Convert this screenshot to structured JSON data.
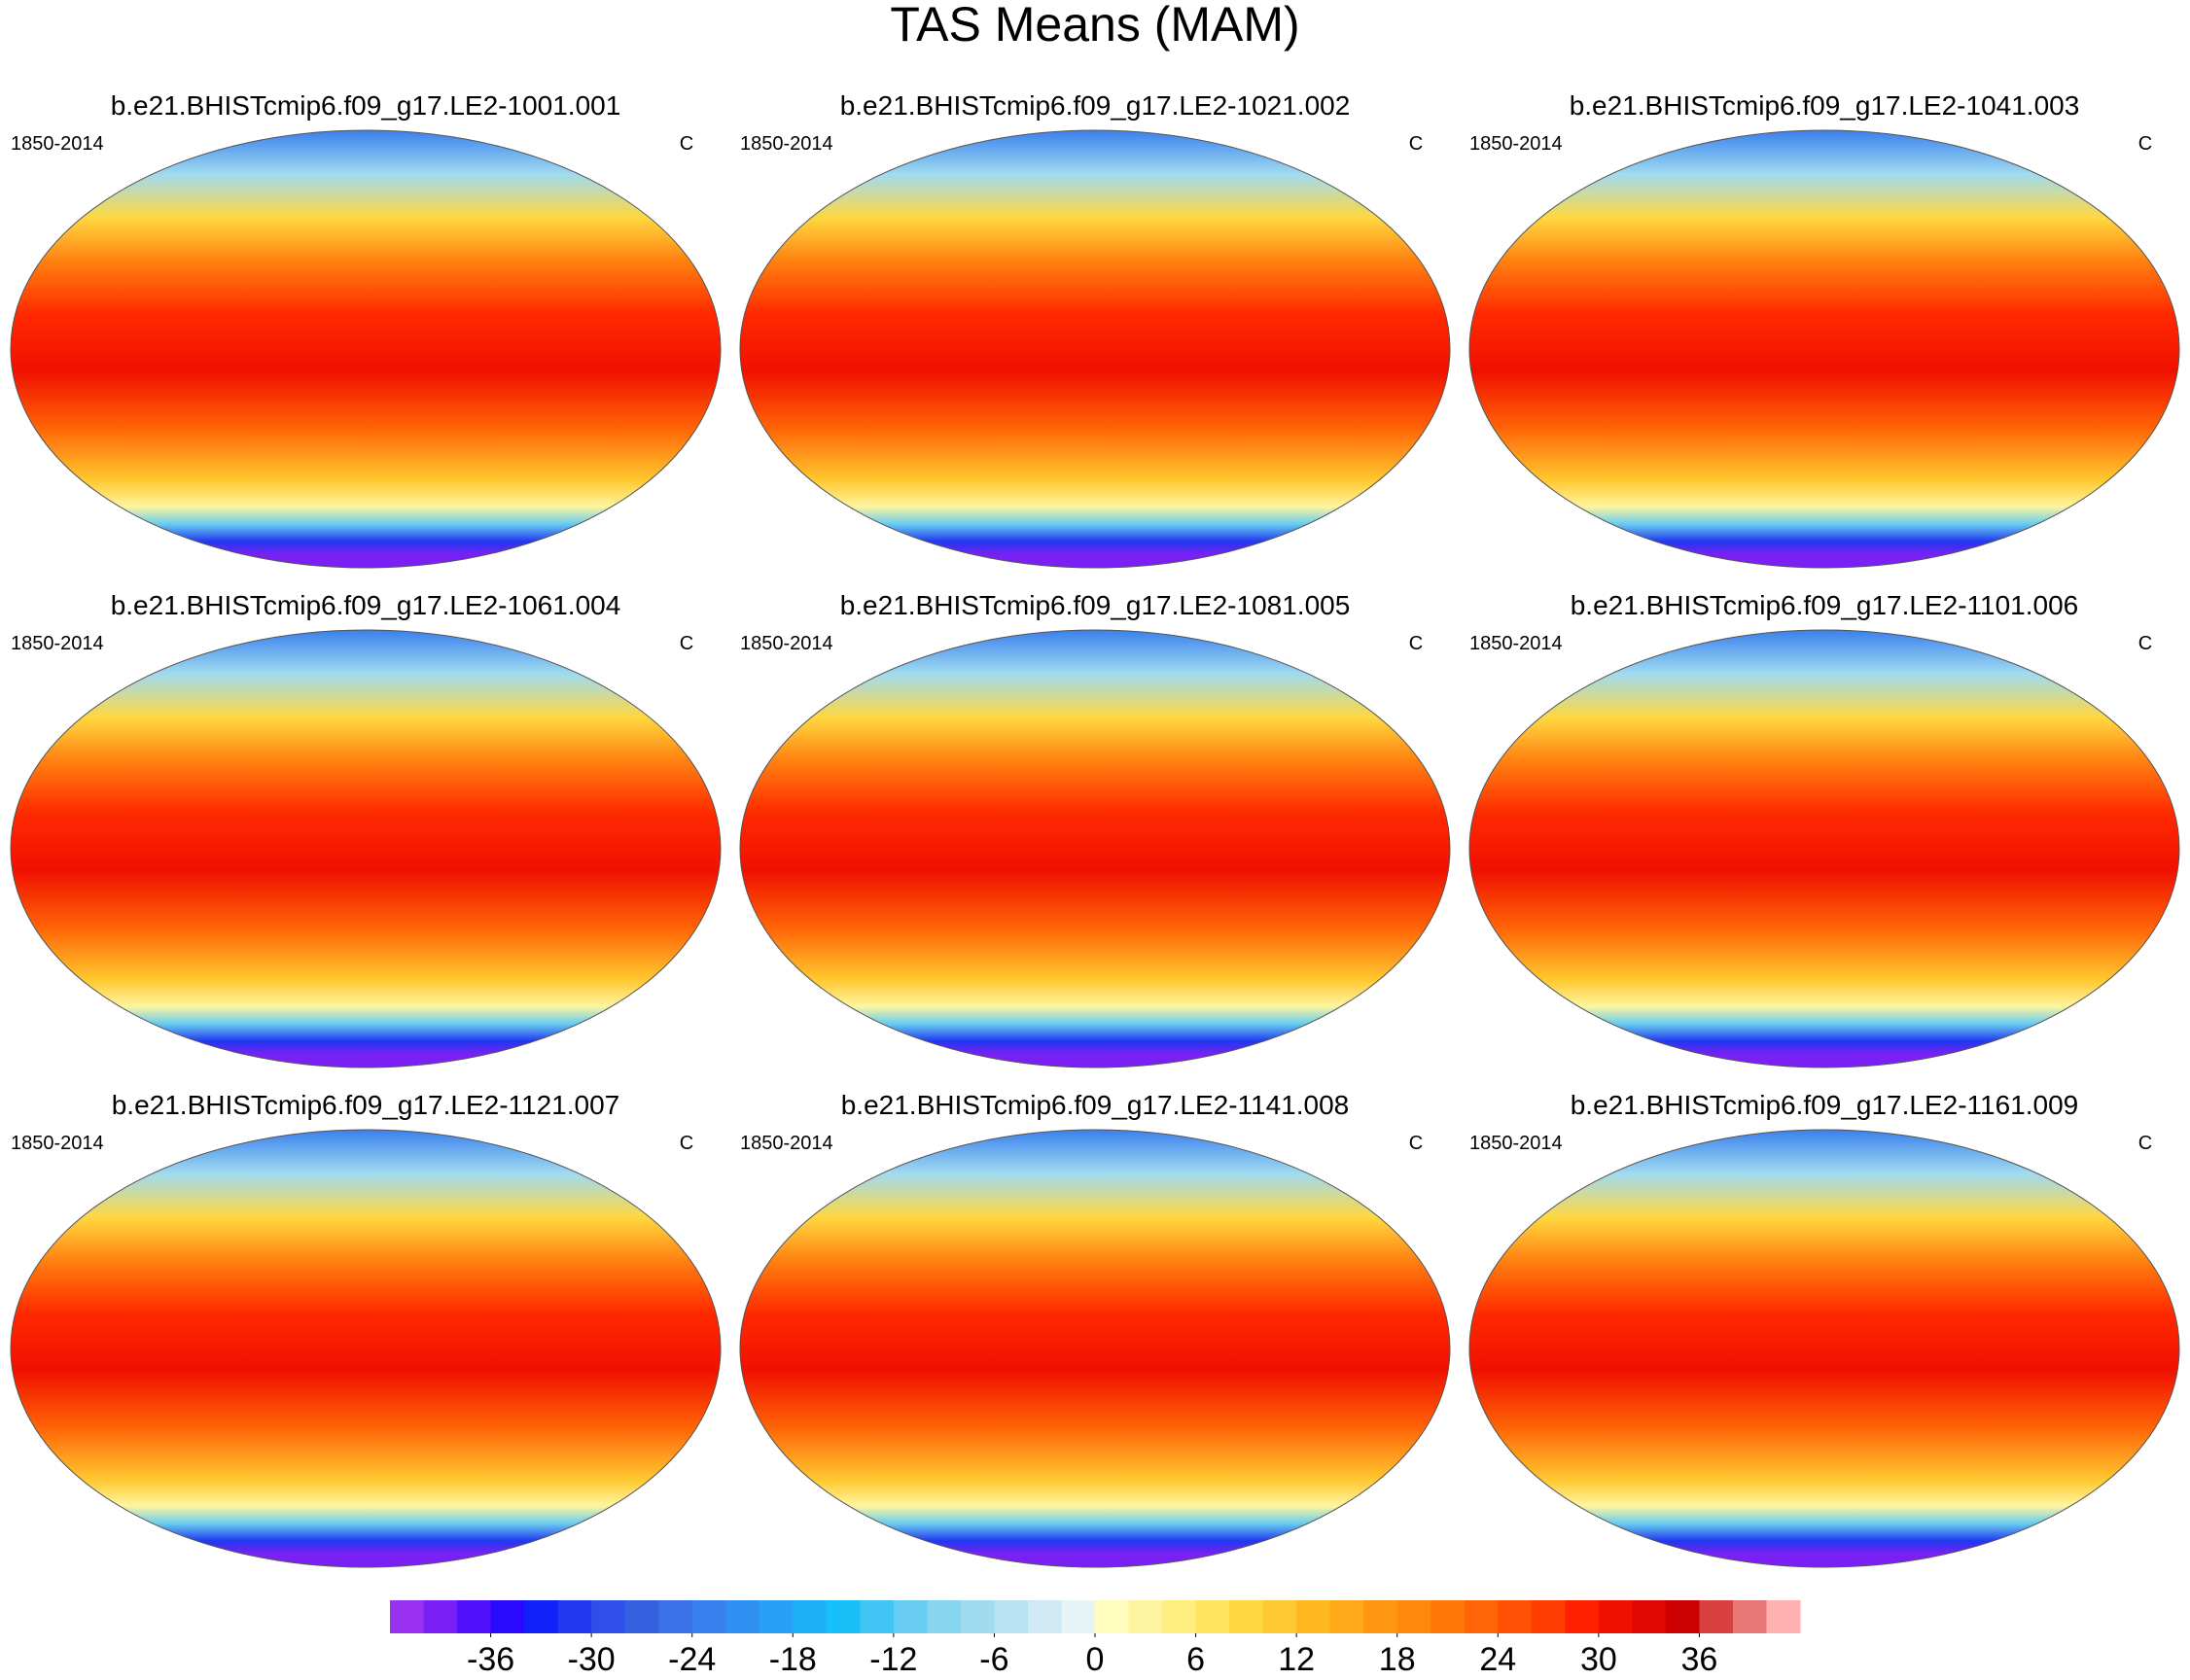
{
  "title": "TAS Means (MAM)",
  "panels": [
    {
      "title": "b.e21.BHISTcmip6.f09_g17.LE2-1001.001",
      "period": "1850-2014",
      "units": "C"
    },
    {
      "title": "b.e21.BHISTcmip6.f09_g17.LE2-1021.002",
      "period": "1850-2014",
      "units": "C"
    },
    {
      "title": "b.e21.BHISTcmip6.f09_g17.LE2-1041.003",
      "period": "1850-2014",
      "units": "C"
    },
    {
      "title": "b.e21.BHISTcmip6.f09_g17.LE2-1061.004",
      "period": "1850-2014",
      "units": "C"
    },
    {
      "title": "b.e21.BHISTcmip6.f09_g17.LE2-1081.005",
      "period": "1850-2014",
      "units": "C"
    },
    {
      "title": "b.e21.BHISTcmip6.f09_g17.LE2-1101.006",
      "period": "1850-2014",
      "units": "C"
    },
    {
      "title": "b.e21.BHISTcmip6.f09_g17.LE2-1121.007",
      "period": "1850-2014",
      "units": "C"
    },
    {
      "title": "b.e21.BHISTcmip6.f09_g17.LE2-1141.008",
      "period": "1850-2014",
      "units": "C"
    },
    {
      "title": "b.e21.BHISTcmip6.f09_g17.LE2-1161.009",
      "period": "1850-2014",
      "units": "C"
    }
  ],
  "colorbar": {
    "levels": [
      -40,
      -38,
      -36,
      -34,
      -32,
      -30,
      -28,
      -26,
      -24,
      -22,
      -20,
      -18,
      -16,
      -14,
      -12,
      -10,
      -8,
      -6,
      -4,
      -2,
      0,
      2,
      4,
      6,
      8,
      10,
      12,
      14,
      16,
      18,
      20,
      22,
      24,
      26,
      28,
      30,
      32,
      34,
      36,
      38,
      40
    ],
    "colors": [
      "#9a30f0",
      "#7a20f5",
      "#5010fa",
      "#2a0aff",
      "#1020f8",
      "#2038f0",
      "#2e50e8",
      "#3560e0",
      "#3a70e8",
      "#3880ee",
      "#3090f2",
      "#28a0f5",
      "#20b0f8",
      "#18c0fa",
      "#40c5f5",
      "#68cdf0",
      "#88d5ef",
      "#a0dbf0",
      "#b8e2f2",
      "#cfe9f5",
      "#e6f4f8",
      "#fffcc0",
      "#fff5a0",
      "#ffee80",
      "#ffe460",
      "#ffd840",
      "#ffc830",
      "#ffb820",
      "#ffa818",
      "#ff9810",
      "#ff880c",
      "#ff7808",
      "#ff6406",
      "#ff5004",
      "#ff3c02",
      "#ff2000",
      "#f01000",
      "#e00800",
      "#cc0000",
      "#d84040",
      "#e87878",
      "#ffb0b0"
    ],
    "ticks": [
      -36,
      -30,
      -24,
      -18,
      -12,
      -6,
      0,
      6,
      12,
      18,
      24,
      30,
      36
    ]
  }
}
